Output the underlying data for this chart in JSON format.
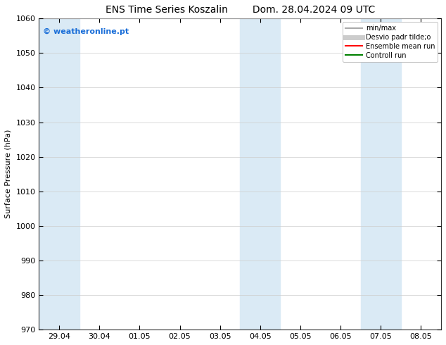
{
  "title_left": "ENS Time Series Koszalin",
  "title_right": "Dom. 28.04.2024 09 UTC",
  "ylabel": "Surface Pressure (hPa)",
  "ylim": [
    970,
    1060
  ],
  "yticks": [
    970,
    980,
    990,
    1000,
    1010,
    1020,
    1030,
    1040,
    1050,
    1060
  ],
  "x_labels": [
    "29.04",
    "30.04",
    "01.05",
    "02.05",
    "03.05",
    "04.05",
    "05.05",
    "06.05",
    "07.05",
    "08.05"
  ],
  "x_positions": [
    0,
    1,
    2,
    3,
    4,
    5,
    6,
    7,
    8,
    9
  ],
  "xlim": [
    -0.5,
    9.5
  ],
  "shaded_bands": [
    {
      "x_start": -0.5,
      "x_end": 0.5
    },
    {
      "x_start": 4.5,
      "x_end": 5.0
    },
    {
      "x_start": 5.0,
      "x_end": 5.5
    },
    {
      "x_start": 7.5,
      "x_end": 8.0
    },
    {
      "x_start": 8.0,
      "x_end": 8.5
    }
  ],
  "band_color": "#daeaf5",
  "watermark_text": "© weatheronline.pt",
  "watermark_color": "#1a6ed8",
  "legend_items": [
    {
      "label": "min/max",
      "color": "#aaaaaa",
      "lw": 1.5,
      "style": "solid"
    },
    {
      "label": "Desvio padr tilde;o",
      "color": "#cccccc",
      "lw": 5,
      "style": "solid"
    },
    {
      "label": "Ensemble mean run",
      "color": "red",
      "lw": 1.5,
      "style": "solid"
    },
    {
      "label": "Controll run",
      "color": "green",
      "lw": 1.5,
      "style": "solid"
    }
  ],
  "bg_color": "#ffffff",
  "plot_bg_color": "#ffffff",
  "grid_color": "#cccccc",
  "title_fontsize": 10,
  "label_fontsize": 8,
  "tick_fontsize": 8
}
